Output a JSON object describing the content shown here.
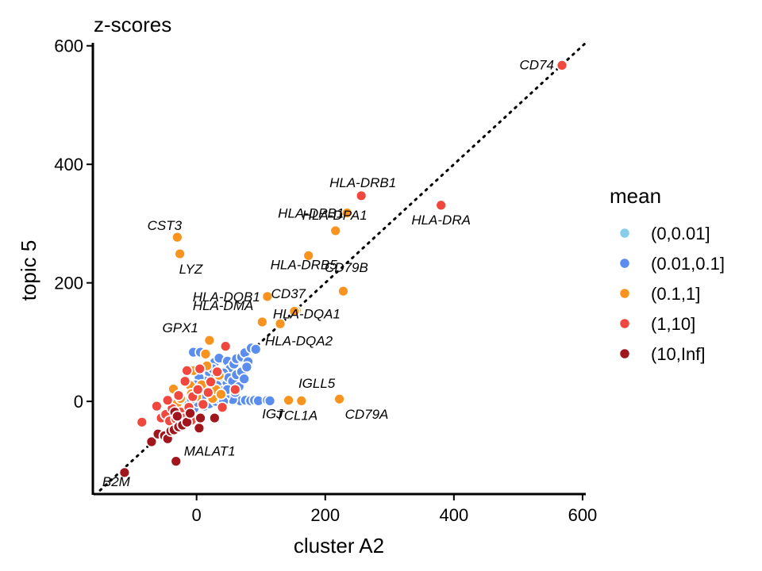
{
  "chart_data": {
    "type": "scatter",
    "title": "z-scores",
    "xlabel": "cluster A2",
    "ylabel": "topic 5",
    "xlim": [
      -160,
      605
    ],
    "ylim": [
      -155,
      605
    ],
    "xticks": [
      0,
      200,
      400,
      600
    ],
    "yticks": [
      0,
      200,
      400,
      600
    ],
    "xtick_labels": [
      "0",
      "200",
      "400",
      "600"
    ],
    "ytick_labels": [
      "0",
      "200",
      "400",
      "600"
    ],
    "grid": false,
    "reference_line": {
      "style": "dotted",
      "slope": 1,
      "intercept": 0
    },
    "legend": {
      "title": "mean",
      "position": "right",
      "entries": [
        {
          "label": "(0,0.01]",
          "color": "#87CEEB"
        },
        {
          "label": "(0.01,0.1]",
          "color": "#5B8DEF"
        },
        {
          "label": "(0.1,1]",
          "color": "#F7931E"
        },
        {
          "label": "(1,10]",
          "color": "#F0483E"
        },
        {
          "label": "(10,Inf]",
          "color": "#A0161C"
        }
      ]
    },
    "labeled_points": [
      {
        "label": "CD74",
        "x": 568,
        "y": 567,
        "group": 3
      },
      {
        "label": "HLA-DRA",
        "x": 380,
        "y": 331,
        "group": 3
      },
      {
        "label": "HLA-DRB1",
        "x": 256,
        "y": 347,
        "group": 3
      },
      {
        "label": "HLA-DPB1",
        "x": 234,
        "y": 318,
        "group": 2
      },
      {
        "label": "HLA-DPA1",
        "x": 216,
        "y": 288,
        "group": 2
      },
      {
        "label": "HLA-DRB5",
        "x": 174,
        "y": 246,
        "group": 2
      },
      {
        "label": "CD79B",
        "x": 228,
        "y": 186,
        "group": 2
      },
      {
        "label": "HLA-DQB1",
        "x": 110,
        "y": 177,
        "group": 2
      },
      {
        "label": "CD37",
        "x": 155,
        "y": 153,
        "group": 2
      },
      {
        "label": "HLA-DMA",
        "x": 102,
        "y": 134,
        "group": 2
      },
      {
        "label": "HLA-DQA1",
        "x": 152,
        "y": 152,
        "group": 2
      },
      {
        "label": "HLA-DQA2",
        "x": 130,
        "y": 131,
        "group": 2
      },
      {
        "label": "CST3",
        "x": -30,
        "y": 277,
        "group": 2
      },
      {
        "label": "LYZ",
        "x": -26,
        "y": 249,
        "group": 2
      },
      {
        "label": "GPX1",
        "x": 20,
        "y": 103,
        "group": 2
      },
      {
        "label": "IGLL5",
        "x": 162,
        "y": 3,
        "group": 2
      },
      {
        "label": "CD79A",
        "x": 222,
        "y": 4,
        "group": 2
      },
      {
        "label": "IGJ",
        "x": 143,
        "y": 2,
        "group": 2
      },
      {
        "label": "TCL1A",
        "x": 163,
        "y": 1,
        "group": 2
      },
      {
        "label": "MALAT1",
        "x": -32,
        "y": -101,
        "group": 4
      },
      {
        "label": "B2M",
        "x": -112,
        "y": -120,
        "group": 4
      }
    ],
    "other_points": [
      {
        "x": -70,
        "y": -68,
        "group": 4
      },
      {
        "x": -60,
        "y": -55,
        "group": 4
      },
      {
        "x": -50,
        "y": -58,
        "group": 4
      },
      {
        "x": -45,
        "y": -63,
        "group": 4
      },
      {
        "x": -40,
        "y": -50,
        "group": 4
      },
      {
        "x": -35,
        "y": -48,
        "group": 4
      },
      {
        "x": -28,
        "y": -43,
        "group": 4
      },
      {
        "x": -22,
        "y": -40,
        "group": 4
      },
      {
        "x": -15,
        "y": -35,
        "group": 4
      },
      {
        "x": 4,
        "y": -45,
        "group": 4
      },
      {
        "x": 6,
        "y": -28,
        "group": 4
      },
      {
        "x": 28,
        "y": -28,
        "group": 4
      },
      {
        "x": -34,
        "y": -18,
        "group": 4
      },
      {
        "x": -30,
        "y": -25,
        "group": 4
      },
      {
        "x": -10,
        "y": -20,
        "group": 4
      },
      {
        "x": -85,
        "y": -35,
        "group": 3
      },
      {
        "x": -62,
        "y": -8,
        "group": 3
      },
      {
        "x": -55,
        "y": -28,
        "group": 3
      },
      {
        "x": -48,
        "y": -22,
        "group": 3
      },
      {
        "x": -42,
        "y": -33,
        "group": 3
      },
      {
        "x": -38,
        "y": -12,
        "group": 3
      },
      {
        "x": -32,
        "y": -30,
        "group": 3
      },
      {
        "x": -25,
        "y": -18,
        "group": 3
      },
      {
        "x": -20,
        "y": -28,
        "group": 3
      },
      {
        "x": -12,
        "y": -10,
        "group": 3
      },
      {
        "x": -8,
        "y": -32,
        "group": 3
      },
      {
        "x": -6,
        "y": 8,
        "group": 3
      },
      {
        "x": -15,
        "y": 52,
        "group": 3
      },
      {
        "x": 2,
        "y": 20,
        "group": 3
      },
      {
        "x": 10,
        "y": -5,
        "group": 3
      },
      {
        "x": 22,
        "y": 33,
        "group": 3
      },
      {
        "x": 40,
        "y": -10,
        "group": 3
      },
      {
        "x": 45,
        "y": 93,
        "group": 3
      },
      {
        "x": 60,
        "y": 20,
        "group": 3
      },
      {
        "x": 5,
        "y": 55,
        "group": 3
      },
      {
        "x": -45,
        "y": 2,
        "group": 3
      },
      {
        "x": -28,
        "y": 10,
        "group": 3
      },
      {
        "x": 32,
        "y": 50,
        "group": 3
      },
      {
        "x": -18,
        "y": 34,
        "group": 3
      },
      {
        "x": 18,
        "y": 15,
        "group": 3
      },
      {
        "x": -36,
        "y": 21,
        "group": 2
      },
      {
        "x": -30,
        "y": -3,
        "group": 2
      },
      {
        "x": -25,
        "y": 5,
        "group": 2
      },
      {
        "x": -20,
        "y": 35,
        "group": 2
      },
      {
        "x": -10,
        "y": 27,
        "group": 2
      },
      {
        "x": -5,
        "y": 52,
        "group": 2
      },
      {
        "x": 0,
        "y": 8,
        "group": 2
      },
      {
        "x": 8,
        "y": 28,
        "group": 2
      },
      {
        "x": 14,
        "y": 80,
        "group": 2
      },
      {
        "x": 16,
        "y": 60,
        "group": 2
      },
      {
        "x": 25,
        "y": 5,
        "group": 2
      },
      {
        "x": 30,
        "y": 20,
        "group": 2
      },
      {
        "x": 35,
        "y": 44,
        "group": 2
      },
      {
        "x": 38,
        "y": 12,
        "group": 2
      },
      {
        "x": -16,
        "y": -17,
        "group": 2
      },
      {
        "x": -22,
        "y": -22,
        "group": 2
      },
      {
        "x": -8,
        "y": 13,
        "group": 2
      },
      {
        "x": -5,
        "y": 83,
        "group": 1
      },
      {
        "x": 6,
        "y": 83,
        "group": 1
      },
      {
        "x": 28,
        "y": 66,
        "group": 1
      },
      {
        "x": 35,
        "y": 73,
        "group": 1
      },
      {
        "x": 48,
        "y": 68,
        "group": 1
      },
      {
        "x": 52,
        "y": 55,
        "group": 1
      },
      {
        "x": 58,
        "y": 63,
        "group": 1
      },
      {
        "x": 62,
        "y": 72,
        "group": 1
      },
      {
        "x": 70,
        "y": 75,
        "group": 1
      },
      {
        "x": 75,
        "y": 82,
        "group": 1
      },
      {
        "x": 80,
        "y": 67,
        "group": 1
      },
      {
        "x": 85,
        "y": 90,
        "group": 1
      },
      {
        "x": 92,
        "y": 88,
        "group": 1
      },
      {
        "x": 20,
        "y": 48,
        "group": 1
      },
      {
        "x": 25,
        "y": 55,
        "group": 1
      },
      {
        "x": 30,
        "y": 42,
        "group": 1
      },
      {
        "x": 38,
        "y": 35,
        "group": 1
      },
      {
        "x": 42,
        "y": 48,
        "group": 1
      },
      {
        "x": 46,
        "y": 28,
        "group": 1
      },
      {
        "x": 50,
        "y": 40,
        "group": 1
      },
      {
        "x": 56,
        "y": 34,
        "group": 1
      },
      {
        "x": 62,
        "y": 45,
        "group": 1
      },
      {
        "x": 66,
        "y": 25,
        "group": 1
      },
      {
        "x": 70,
        "y": 50,
        "group": 1
      },
      {
        "x": 74,
        "y": 38,
        "group": 1
      },
      {
        "x": 78,
        "y": 58,
        "group": 1
      },
      {
        "x": 64,
        "y": 3,
        "group": 1
      },
      {
        "x": 68,
        "y": 1,
        "group": 1
      },
      {
        "x": 76,
        "y": 2,
        "group": 1
      },
      {
        "x": 84,
        "y": 1,
        "group": 1
      },
      {
        "x": 90,
        "y": 2,
        "group": 1
      },
      {
        "x": 96,
        "y": 1,
        "group": 1
      },
      {
        "x": 110,
        "y": 2,
        "group": 1
      },
      {
        "x": 114,
        "y": 1,
        "group": 1
      },
      {
        "x": 52,
        "y": 10,
        "group": 1
      },
      {
        "x": 56,
        "y": 3,
        "group": 1
      },
      {
        "x": 10,
        "y": 22,
        "group": 1
      },
      {
        "x": 14,
        "y": 34,
        "group": 1
      },
      {
        "x": 18,
        "y": 28,
        "group": 1
      },
      {
        "x": 4,
        "y": 40,
        "group": 1
      },
      {
        "x": -2,
        "y": 28,
        "group": 1
      },
      {
        "x": -6,
        "y": 18,
        "group": 1
      },
      {
        "x": 24,
        "y": 20,
        "group": 1
      },
      {
        "x": 32,
        "y": 27,
        "group": 1
      },
      {
        "x": 40,
        "y": 18,
        "group": 1
      },
      {
        "x": 44,
        "y": 8,
        "group": 1
      },
      {
        "x": 48,
        "y": 20,
        "group": 1
      },
      {
        "x": 60,
        "y": 15,
        "group": 1
      },
      {
        "x": -12,
        "y": -5,
        "group": 1
      },
      {
        "x": -4,
        "y": -12,
        "group": 1
      },
      {
        "x": 2,
        "y": -2,
        "group": 1
      },
      {
        "x": 8,
        "y": 5,
        "group": 1
      },
      {
        "x": -8,
        "y": 4,
        "group": 1
      },
      {
        "x": 0,
        "y": 15,
        "group": 1
      },
      {
        "x": 12,
        "y": -8,
        "group": 1
      },
      {
        "x": 20,
        "y": -4,
        "group": 1
      },
      {
        "x": 30,
        "y": 0,
        "group": 1
      },
      {
        "x": 36,
        "y": 4,
        "group": 1
      },
      {
        "x": 42,
        "y": 0,
        "group": 1
      },
      {
        "x": 0,
        "y": 0,
        "group": 0
      },
      {
        "x": 2,
        "y": 2,
        "group": 0
      },
      {
        "x": -2,
        "y": 3,
        "group": 0
      },
      {
        "x": 4,
        "y": -3,
        "group": 0
      },
      {
        "x": -4,
        "y": -2,
        "group": 0
      },
      {
        "x": 6,
        "y": 6,
        "group": 0
      },
      {
        "x": 8,
        "y": 1,
        "group": 0
      },
      {
        "x": 10,
        "y": 8,
        "group": 0
      },
      {
        "x": 12,
        "y": 3,
        "group": 0
      },
      {
        "x": 14,
        "y": 10,
        "group": 0
      },
      {
        "x": 16,
        "y": 5,
        "group": 0
      },
      {
        "x": 18,
        "y": -1,
        "group": 0
      },
      {
        "x": 20,
        "y": 12,
        "group": 0
      },
      {
        "x": 22,
        "y": 6,
        "group": 0
      },
      {
        "x": 24,
        "y": 14,
        "group": 0
      },
      {
        "x": 26,
        "y": 0,
        "group": 0
      },
      {
        "x": 28,
        "y": 10,
        "group": 0
      },
      {
        "x": 30,
        "y": 22,
        "group": 0
      },
      {
        "x": 33,
        "y": 16,
        "group": 0
      },
      {
        "x": 34,
        "y": 2,
        "group": 0
      },
      {
        "x": -6,
        "y": 7,
        "group": 0
      },
      {
        "x": -10,
        "y": 2,
        "group": 0
      },
      {
        "x": 0,
        "y": 12,
        "group": 0
      },
      {
        "x": 4,
        "y": 18,
        "group": 0
      },
      {
        "x": 9,
        "y": -6,
        "group": 0
      },
      {
        "x": -3,
        "y": -8,
        "group": 0
      },
      {
        "x": 15,
        "y": -3,
        "group": 0
      },
      {
        "x": 36,
        "y": 8,
        "group": 0
      }
    ]
  }
}
